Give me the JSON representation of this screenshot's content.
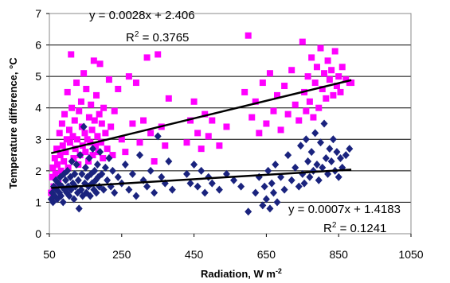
{
  "chart_data": {
    "type": "scatter",
    "title": "",
    "xlabel": "Radiation, W m",
    "xlabel_superscript": "-2",
    "ylabel": "Temperature difference, °C",
    "xlim": [
      50,
      1050
    ],
    "ylim": [
      0,
      7
    ],
    "x_ticks": [
      "50",
      "250",
      "450",
      "650",
      "850",
      "1050"
    ],
    "y_ticks": [
      "0",
      "1",
      "2",
      "3",
      "4",
      "5",
      "6",
      "7"
    ],
    "grid": "horizontal",
    "legend": "none",
    "series": [
      {
        "marker": "square",
        "color": "#ff00ff",
        "points": [
          [
            55,
            1.3
          ],
          [
            58,
            1.8
          ],
          [
            60,
            2.1
          ],
          [
            62,
            1.5
          ],
          [
            65,
            2.4
          ],
          [
            67,
            1.9
          ],
          [
            70,
            2.7
          ],
          [
            72,
            2.2
          ],
          [
            75,
            1.6
          ],
          [
            78,
            3.2
          ],
          [
            80,
            2.5
          ],
          [
            82,
            2.0
          ],
          [
            85,
            3.5
          ],
          [
            87,
            2.8
          ],
          [
            90,
            2.3
          ],
          [
            92,
            3.8
          ],
          [
            95,
            2.6
          ],
          [
            98,
            3.0
          ],
          [
            100,
            4.5
          ],
          [
            102,
            2.1
          ],
          [
            105,
            3.3
          ],
          [
            107,
            2.9
          ],
          [
            110,
            5.7
          ],
          [
            112,
            4.0
          ],
          [
            115,
            3.1
          ],
          [
            117,
            2.4
          ],
          [
            120,
            3.6
          ],
          [
            122,
            2.7
          ],
          [
            125,
            4.8
          ],
          [
            127,
            3.0
          ],
          [
            130,
            2.2
          ],
          [
            132,
            3.9
          ],
          [
            135,
            2.5
          ],
          [
            138,
            4.2
          ],
          [
            140,
            3.4
          ],
          [
            142,
            2.8
          ],
          [
            145,
            5.1
          ],
          [
            148,
            3.2
          ],
          [
            150,
            2.6
          ],
          [
            152,
            4.6
          ],
          [
            155,
            3.0
          ],
          [
            158,
            2.3
          ],
          [
            160,
            3.7
          ],
          [
            163,
            2.9
          ],
          [
            165,
            4.1
          ],
          [
            168,
            3.3
          ],
          [
            170,
            2.5
          ],
          [
            173,
            5.5
          ],
          [
            175,
            3.6
          ],
          [
            178,
            2.8
          ],
          [
            180,
            4.4
          ],
          [
            183,
            3.1
          ],
          [
            185,
            2.6
          ],
          [
            188,
            3.8
          ],
          [
            190,
            5.4
          ],
          [
            193,
            2.9
          ],
          [
            195,
            3.5
          ],
          [
            198,
            2.4
          ],
          [
            200,
            4.0
          ],
          [
            205,
            3.2
          ],
          [
            210,
            2.7
          ],
          [
            215,
            4.9
          ],
          [
            220,
            3.4
          ],
          [
            225,
            2.5
          ],
          [
            230,
            3.9
          ],
          [
            240,
            4.6
          ],
          [
            250,
            3.0
          ],
          [
            260,
            2.6
          ],
          [
            270,
            5.0
          ],
          [
            280,
            3.5
          ],
          [
            290,
            4.8
          ],
          [
            300,
            2.9
          ],
          [
            310,
            3.6
          ],
          [
            320,
            5.6
          ],
          [
            330,
            3.2
          ],
          [
            340,
            2.3
          ],
          [
            350,
            5.7
          ],
          [
            360,
            3.4
          ],
          [
            370,
            2.8
          ],
          [
            380,
            4.3
          ],
          [
            430,
            2.9
          ],
          [
            440,
            3.6
          ],
          [
            450,
            4.2
          ],
          [
            460,
            3.2
          ],
          [
            470,
            2.7
          ],
          [
            480,
            3.8
          ],
          [
            490,
            3.1
          ],
          [
            500,
            3.6
          ],
          [
            520,
            2.8
          ],
          [
            540,
            3.4
          ],
          [
            590,
            4.5
          ],
          [
            600,
            6.3
          ],
          [
            610,
            3.7
          ],
          [
            620,
            4.2
          ],
          [
            630,
            3.2
          ],
          [
            640,
            4.8
          ],
          [
            650,
            3.5
          ],
          [
            660,
            5.1
          ],
          [
            670,
            3.9
          ],
          [
            680,
            4.4
          ],
          [
            690,
            3.3
          ],
          [
            700,
            4.7
          ],
          [
            710,
            3.8
          ],
          [
            720,
            5.2
          ],
          [
            730,
            4.1
          ],
          [
            740,
            3.6
          ],
          [
            750,
            6.1
          ],
          [
            755,
            4.5
          ],
          [
            760,
            3.9
          ],
          [
            765,
            5.0
          ],
          [
            770,
            4.2
          ],
          [
            775,
            5.6
          ],
          [
            780,
            3.7
          ],
          [
            785,
            4.8
          ],
          [
            790,
            5.3
          ],
          [
            795,
            4.0
          ],
          [
            800,
            5.9
          ],
          [
            805,
            4.6
          ],
          [
            810,
            5.1
          ],
          [
            815,
            4.3
          ],
          [
            820,
            5.5
          ],
          [
            825,
            4.9
          ],
          [
            830,
            5.2
          ],
          [
            835,
            4.4
          ],
          [
            840,
            5.8
          ],
          [
            845,
            4.7
          ],
          [
            850,
            5.0
          ],
          [
            855,
            4.5
          ],
          [
            860,
            5.3
          ],
          [
            870,
            4.9
          ],
          [
            880,
            4.8
          ],
          [
            885,
            4.8
          ]
        ]
      },
      {
        "marker": "diamond",
        "color": "#1a237e",
        "points": [
          [
            55,
            1.1
          ],
          [
            58,
            1.3
          ],
          [
            60,
            1.0
          ],
          [
            62,
            1.5
          ],
          [
            65,
            1.2
          ],
          [
            68,
            1.7
          ],
          [
            70,
            1.4
          ],
          [
            72,
            1.1
          ],
          [
            75,
            1.6
          ],
          [
            78,
            1.3
          ],
          [
            80,
            1.8
          ],
          [
            82,
            1.2
          ],
          [
            85,
            1.5
          ],
          [
            88,
            1.0
          ],
          [
            90,
            1.9
          ],
          [
            92,
            1.4
          ],
          [
            95,
            1.7
          ],
          [
            98,
            1.3
          ],
          [
            100,
            2.0
          ],
          [
            102,
            1.5
          ],
          [
            105,
            1.2
          ],
          [
            108,
            1.8
          ],
          [
            110,
            1.4
          ],
          [
            112,
            2.3
          ],
          [
            115,
            1.6
          ],
          [
            118,
            1.1
          ],
          [
            120,
            1.9
          ],
          [
            122,
            1.5
          ],
          [
            125,
            2.2
          ],
          [
            128,
            1.3
          ],
          [
            130,
            1.7
          ],
          [
            132,
            0.8
          ],
          [
            135,
            2.5
          ],
          [
            138,
            1.4
          ],
          [
            140,
            1.9
          ],
          [
            142,
            1.2
          ],
          [
            145,
            3.4
          ],
          [
            148,
            1.6
          ],
          [
            150,
            2.1
          ],
          [
            152,
            1.3
          ],
          [
            155,
            1.8
          ],
          [
            158,
            1.5
          ],
          [
            160,
            2.4
          ],
          [
            163,
            1.2
          ],
          [
            165,
            1.9
          ],
          [
            168,
            1.6
          ],
          [
            170,
            2.7
          ],
          [
            173,
            1.4
          ],
          [
            175,
            2.0
          ],
          [
            178,
            1.7
          ],
          [
            180,
            1.3
          ],
          [
            183,
            2.2
          ],
          [
            185,
            1.8
          ],
          [
            188,
            1.5
          ],
          [
            190,
            2.6
          ],
          [
            195,
            1.9
          ],
          [
            200,
            1.4
          ],
          [
            205,
            2.1
          ],
          [
            210,
            1.7
          ],
          [
            215,
            2.4
          ],
          [
            220,
            1.5
          ],
          [
            225,
            2.0
          ],
          [
            230,
            1.3
          ],
          [
            240,
            1.8
          ],
          [
            250,
            1.6
          ],
          [
            260,
            2.2
          ],
          [
            270,
            1.4
          ],
          [
            280,
            1.9
          ],
          [
            290,
            1.2
          ],
          [
            300,
            2.5
          ],
          [
            310,
            1.7
          ],
          [
            320,
            1.5
          ],
          [
            330,
            2.0
          ],
          [
            340,
            1.3
          ],
          [
            350,
            3.1
          ],
          [
            360,
            1.8
          ],
          [
            370,
            1.6
          ],
          [
            380,
            2.3
          ],
          [
            390,
            1.4
          ],
          [
            430,
            1.9
          ],
          [
            440,
            1.6
          ],
          [
            450,
            2.2
          ],
          [
            460,
            1.5
          ],
          [
            470,
            2.0
          ],
          [
            480,
            1.3
          ],
          [
            490,
            1.8
          ],
          [
            500,
            1.6
          ],
          [
            520,
            1.4
          ],
          [
            540,
            1.9
          ],
          [
            560,
            1.7
          ],
          [
            580,
            1.5
          ],
          [
            600,
            0.7
          ],
          [
            620,
            1.3
          ],
          [
            630,
            1.8
          ],
          [
            640,
            0.9
          ],
          [
            645,
            1.5
          ],
          [
            650,
            1.1
          ],
          [
            655,
            2.0
          ],
          [
            660,
            0.8
          ],
          [
            665,
            1.6
          ],
          [
            670,
            1.3
          ],
          [
            675,
            2.2
          ],
          [
            680,
            1.0
          ],
          [
            690,
            1.8
          ],
          [
            700,
            1.4
          ],
          [
            710,
            2.5
          ],
          [
            720,
            1.7
          ],
          [
            730,
            2.1
          ],
          [
            740,
            1.5
          ],
          [
            745,
            2.8
          ],
          [
            750,
            1.9
          ],
          [
            755,
            1.6
          ],
          [
            760,
            3.0
          ],
          [
            765,
            2.3
          ],
          [
            770,
            1.8
          ],
          [
            775,
            2.6
          ],
          [
            780,
            2.0
          ],
          [
            785,
            3.2
          ],
          [
            790,
            2.2
          ],
          [
            795,
            1.7
          ],
          [
            800,
            2.9
          ],
          [
            805,
            2.1
          ],
          [
            810,
            3.5
          ],
          [
            815,
            2.4
          ],
          [
            820,
            1.9
          ],
          [
            825,
            2.7
          ],
          [
            830,
            2.3
          ],
          [
            835,
            3.0
          ],
          [
            840,
            2.0
          ],
          [
            845,
            2.6
          ],
          [
            850,
            1.8
          ],
          [
            855,
            2.4
          ],
          [
            860,
            2.1
          ],
          [
            870,
            2.5
          ],
          [
            880,
            2.7
          ]
        ]
      }
    ],
    "trendlines": [
      {
        "slope": 0.0028,
        "intercept": 2.406,
        "x_range": [
          55,
          885
        ],
        "equation": "y = 0.0028x + 2.406",
        "r2_label": "R",
        "r2_sup": "2",
        "r2_value": " = 0.3765"
      },
      {
        "slope": 0.0007,
        "intercept": 1.4183,
        "x_range": [
          55,
          885
        ],
        "equation": "y = 0.0007x + 1.4183",
        "r2_label": "R",
        "r2_sup": "2",
        "r2_value": " = 0.1241"
      }
    ]
  }
}
